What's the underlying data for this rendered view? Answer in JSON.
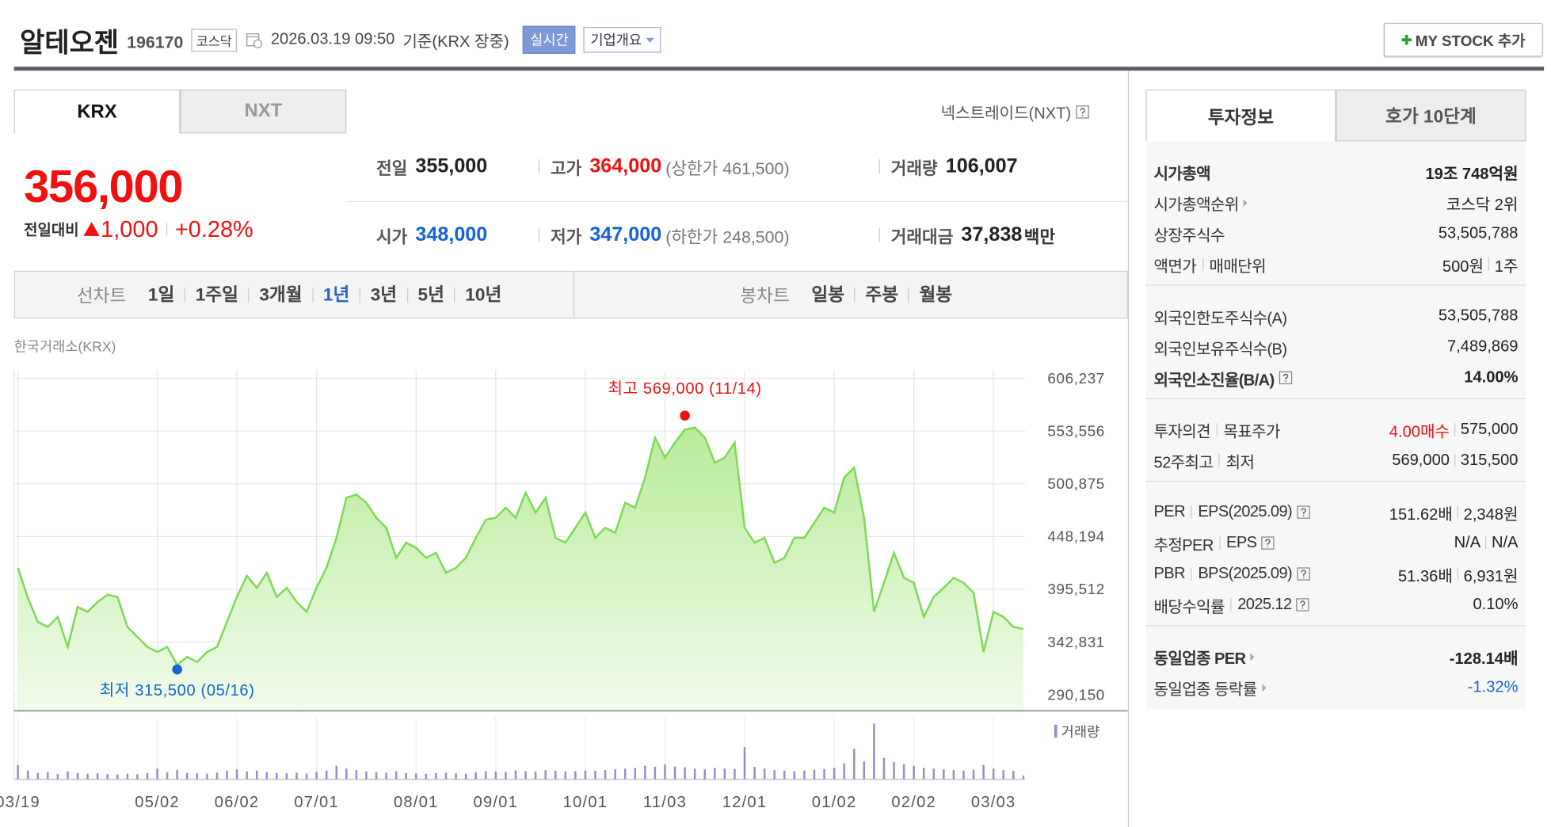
{
  "header": {
    "name": "알테오젠",
    "code": "196170",
    "market": "코스닥",
    "datetime": "2026.03.19 09:50",
    "basis": "기준(KRX 장중)",
    "realtime_button": "실시간",
    "company_button": "기업개요",
    "my_stock_button": "MY STOCK 추가"
  },
  "exchange_tabs": [
    "KRX",
    "NXT"
  ],
  "nxt_link": "넥스트레이드(NXT)",
  "price": {
    "current": "356,000",
    "change_label": "전일대비",
    "change": "1,000",
    "change_rate": "+0.28%"
  },
  "quote": [
    [
      {
        "label": "전일",
        "value": "355,000"
      },
      {
        "label": "고가",
        "value": "364,000",
        "extra": "(상한가 461,500)",
        "color": "#f01010"
      },
      {
        "label": "거래량",
        "value": "106,007"
      }
    ],
    [
      {
        "label": "시가",
        "value": "348,000",
        "color": "#1563d6"
      },
      {
        "label": "저가",
        "value": "347,000",
        "extra": "(하한가 248,500)",
        "color": "#1563d6"
      },
      {
        "label": "거래대금",
        "value": "37,838",
        "unit": "백만"
      }
    ]
  ],
  "period_bar": {
    "line_chart": "선차트",
    "line_periods": [
      "1일",
      "1주일",
      "3개월",
      "1년",
      "3년",
      "5년",
      "10년"
    ],
    "selected_index": 3,
    "candle_chart": "봉차트",
    "candle_periods": [
      "일봉",
      "주봉",
      "월봉"
    ]
  },
  "chart": {
    "type": "line",
    "source": "한국거래소(KRX)",
    "color": "#7ed957",
    "xlim": [
      0,
      101
    ],
    "ylim": [
      274245,
      606237
    ],
    "yticks": [
      {
        "value": 606237,
        "label": "606,237"
      },
      {
        "value": 553556,
        "label": "553,556"
      },
      {
        "value": 500875,
        "label": "500,875"
      },
      {
        "value": 448194,
        "label": "448,194"
      },
      {
        "value": 395512,
        "label": "395,512"
      },
      {
        "value": 342831,
        "label": "342,831"
      },
      {
        "value": 290150,
        "label": "290,150"
      }
    ],
    "xticks": [
      {
        "value": 0,
        "label": "03/19"
      },
      {
        "value": 14,
        "label": "05/02"
      },
      {
        "value": 22,
        "label": "06/02"
      },
      {
        "value": 30,
        "label": "07/01"
      },
      {
        "value": 40,
        "label": "08/01"
      },
      {
        "value": 48,
        "label": "09/01"
      },
      {
        "value": 57,
        "label": "10/01"
      },
      {
        "value": 65,
        "label": "11/03"
      },
      {
        "value": 73,
        "label": "12/01"
      },
      {
        "value": 82,
        "label": "01/02"
      },
      {
        "value": 90,
        "label": "02/02"
      },
      {
        "value": 98,
        "label": "03/03"
      }
    ],
    "values": [
      417000,
      387000,
      363000,
      358000,
      368000,
      338000,
      378000,
      373000,
      383000,
      390000,
      388000,
      358000,
      348000,
      338000,
      333000,
      338000,
      320000,
      328000,
      323000,
      333000,
      338000,
      363000,
      388000,
      409000,
      397000,
      412000,
      388000,
      397000,
      383000,
      373000,
      397000,
      417000,
      447000,
      487000,
      490000,
      482000,
      467000,
      457000,
      427000,
      442000,
      437000,
      427000,
      432000,
      412000,
      417000,
      427000,
      447000,
      465000,
      467000,
      477000,
      467000,
      492000,
      472000,
      487000,
      447000,
      442000,
      457000,
      472000,
      447000,
      457000,
      452000,
      482000,
      477000,
      507000,
      547000,
      527000,
      542000,
      555000,
      557000,
      547000,
      522000,
      527000,
      542000,
      457000,
      442000,
      447000,
      422000,
      427000,
      447000,
      447000,
      462000,
      477000,
      472000,
      507000,
      517000,
      467000,
      373000,
      402000,
      432000,
      407000,
      402000,
      368000,
      388000,
      397000,
      407000,
      402000,
      392000,
      333000,
      373000,
      368000,
      358000,
      356000
    ],
    "high": {
      "label": "최고 569,000 (11/14)",
      "value": 569000,
      "index": 67,
      "color": "#f01010"
    },
    "low": {
      "label": "최저 315,500 (05/16)",
      "value": 315500,
      "index": 16,
      "color": "#1563d6"
    },
    "volume": {
      "label": "거래량",
      "color": "#9a8ccc",
      "ylim": [
        0,
        1600000
      ],
      "values": [
        400000,
        250000,
        180000,
        200000,
        150000,
        220000,
        180000,
        160000,
        170000,
        150000,
        140000,
        160000,
        150000,
        180000,
        300000,
        200000,
        260000,
        180000,
        170000,
        160000,
        190000,
        240000,
        280000,
        220000,
        250000,
        200000,
        180000,
        170000,
        190000,
        160000,
        210000,
        250000,
        380000,
        300000,
        260000,
        220000,
        200000,
        190000,
        230000,
        180000,
        170000,
        160000,
        180000,
        190000,
        170000,
        160000,
        200000,
        230000,
        220000,
        210000,
        250000,
        230000,
        220000,
        260000,
        240000,
        220000,
        230000,
        250000,
        240000,
        260000,
        280000,
        300000,
        320000,
        380000,
        350000,
        420000,
        360000,
        340000,
        300000,
        280000,
        320000,
        300000,
        290000,
        900000,
        350000,
        300000,
        260000,
        240000,
        230000,
        250000,
        270000,
        290000,
        320000,
        450000,
        850000,
        500000,
        1550000,
        600000,
        480000,
        420000,
        380000,
        320000,
        300000,
        280000,
        260000,
        250000,
        270000,
        400000,
        300000,
        260000,
        240000,
        106007
      ]
    }
  },
  "info_tabs": [
    "투자정보",
    "호가 10단계"
  ],
  "info_groups": [
    [
      {
        "labels": [
          "시가총액"
        ],
        "values": [
          "19조 748억원"
        ],
        "bold": true
      },
      {
        "labels": [
          "시가총액순위"
        ],
        "arrow": true,
        "values": [
          "코스닥 2위"
        ]
      },
      {
        "labels": [
          "상장주식수"
        ],
        "values": [
          "53,505,788"
        ]
      },
      {
        "labels": [
          "액면가",
          "매매단위"
        ],
        "values": [
          "500원",
          "1주"
        ]
      }
    ],
    [
      {
        "labels": [
          "외국인한도주식수(A)"
        ],
        "values": [
          "53,505,788"
        ]
      },
      {
        "labels": [
          "외국인보유주식수(B)"
        ],
        "values": [
          "7,489,869"
        ]
      },
      {
        "labels": [
          "외국인소진율(B/A)"
        ],
        "help": true,
        "values": [
          "14.00%"
        ],
        "bold": true
      }
    ],
    [
      {
        "labels": [
          "투자의견",
          "목표주가"
        ],
        "values": [
          "4.00매수",
          "575,000"
        ],
        "value_colors": [
          "#f01010",
          "#222"
        ]
      },
      {
        "labels": [
          "52주최고",
          "최저"
        ],
        "values": [
          "569,000",
          "315,500"
        ]
      }
    ],
    [
      {
        "labels": [
          "PER",
          "EPS(2025.09)"
        ],
        "help": true,
        "values": [
          "151.62배",
          "2,348원"
        ]
      },
      {
        "labels": [
          "추정PER",
          "EPS"
        ],
        "help": true,
        "values": [
          "N/A",
          "N/A"
        ]
      },
      {
        "labels": [
          "PBR",
          "BPS(2025.09)"
        ],
        "help": true,
        "values": [
          "51.36배",
          "6,931원"
        ]
      },
      {
        "labels": [
          "배당수익률",
          "2025.12"
        ],
        "help": true,
        "values": [
          "0.10%"
        ]
      }
    ],
    [
      {
        "labels": [
          "동일업종 PER"
        ],
        "arrow": true,
        "values": [
          "-128.14배"
        ],
        "bold": true
      },
      {
        "labels": [
          "동일업종 등락률"
        ],
        "arrow": true,
        "values": [
          "-1.32%"
        ],
        "value_colors": [
          "#1563d6"
        ]
      }
    ]
  ]
}
